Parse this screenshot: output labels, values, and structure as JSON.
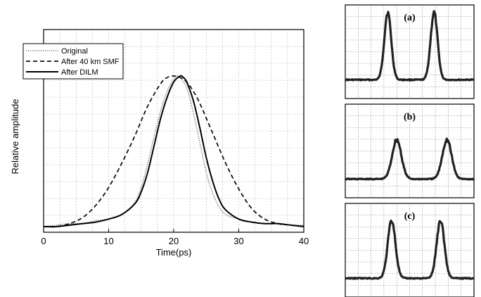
{
  "chart_data": [
    {
      "type": "line",
      "xlabel": "Time(ps)",
      "ylabel": "Relative amplitude",
      "xlim": [
        0,
        40
      ],
      "ylim": [
        0,
        1.05
      ],
      "xticks": [
        0,
        10,
        20,
        30,
        40
      ],
      "y_tick_labels": "none",
      "grid": true,
      "legend": "top-left",
      "series": [
        {
          "name": "Original",
          "style": "dotted",
          "color": "#777777",
          "x": [
            0,
            2,
            4,
            6,
            8,
            10,
            12,
            14,
            15,
            16,
            17,
            18,
            19,
            20,
            20.5,
            21,
            22,
            23,
            24,
            25,
            26,
            27,
            28,
            30,
            32,
            34,
            36,
            38,
            40
          ],
          "y": [
            0.0,
            0.01,
            0.02,
            0.02,
            0.04,
            0.05,
            0.08,
            0.16,
            0.26,
            0.42,
            0.6,
            0.77,
            0.9,
            0.98,
            1.0,
            0.99,
            0.92,
            0.76,
            0.56,
            0.36,
            0.22,
            0.13,
            0.08,
            0.05,
            0.03,
            0.02,
            0.02,
            0.01,
            0.01
          ]
        },
        {
          "name": "After 40 km SMF",
          "style": "dashed",
          "color": "#111111",
          "x": [
            0,
            2,
            4,
            6,
            8,
            10,
            12,
            14,
            16,
            18,
            19,
            20,
            21,
            22,
            23,
            24,
            26,
            28,
            30,
            32,
            34,
            36,
            38,
            40
          ],
          "y": [
            0.0,
            0.0,
            0.02,
            0.06,
            0.14,
            0.26,
            0.42,
            0.6,
            0.8,
            0.95,
            0.99,
            1.0,
            0.99,
            0.96,
            0.9,
            0.82,
            0.62,
            0.42,
            0.25,
            0.12,
            0.05,
            0.02,
            0.01,
            0.0
          ]
        },
        {
          "name": "After DILM",
          "style": "solid",
          "color": "#000000",
          "x": [
            0,
            2,
            4,
            6,
            8,
            10,
            12,
            14,
            15,
            16,
            17,
            18,
            19,
            20,
            21,
            21.5,
            22,
            23,
            24,
            25,
            26,
            27,
            28,
            30,
            32,
            34,
            36,
            38,
            40
          ],
          "y": [
            0.0,
            0.0,
            0.01,
            0.02,
            0.03,
            0.05,
            0.08,
            0.15,
            0.23,
            0.36,
            0.54,
            0.72,
            0.86,
            0.96,
            1.0,
            0.99,
            0.96,
            0.84,
            0.66,
            0.46,
            0.3,
            0.18,
            0.11,
            0.05,
            0.03,
            0.02,
            0.02,
            0.01,
            0.0
          ]
        }
      ]
    },
    {
      "type": "line",
      "panel_label": "(a)",
      "note": "oscilloscope trace",
      "pulse_centers": [
        0.33,
        0.69
      ],
      "pulse_height": 0.72,
      "pulse_width": 0.045,
      "baseline": 0.0
    },
    {
      "type": "line",
      "panel_label": "(b)",
      "note": "oscilloscope trace",
      "pulse_centers": [
        0.4,
        0.79
      ],
      "pulse_height": 0.42,
      "pulse_width": 0.06,
      "baseline": 0.0
    },
    {
      "type": "line",
      "panel_label": "(c)",
      "note": "oscilloscope trace",
      "pulse_centers": [
        0.36,
        0.74
      ],
      "pulse_height": 0.62,
      "pulse_width": 0.05,
      "baseline": 0.0
    }
  ]
}
